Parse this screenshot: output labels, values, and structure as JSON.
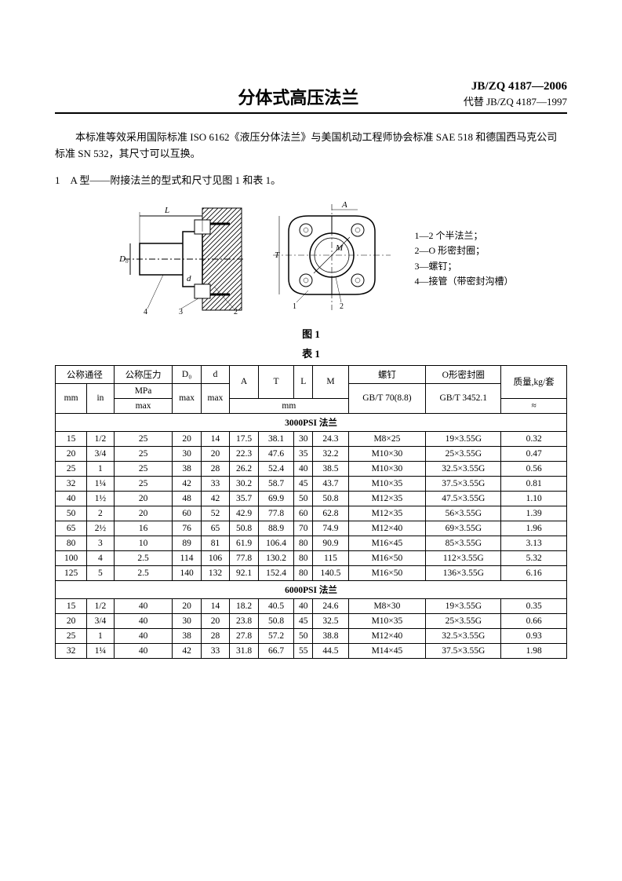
{
  "header": {
    "title": "分体式高压法兰",
    "standard_code": "JB/ZQ 4187—2006",
    "replaces": "代替 JB/ZQ 4187—1997"
  },
  "intro": "本标准等效采用国际标准 ISO 6162《液压分体法兰》与美国机动工程师协会标准 SAE 518 和德国西马克公司标准 SN 532，其尺寸可以互换。",
  "section1": "1　A 型——附接法兰的型式和尺寸见图 1 和表 1。",
  "figure": {
    "caption": "图 1",
    "labels": {
      "L": "L",
      "D0": "D₀",
      "d": "d",
      "A": "A",
      "T": "T",
      "M": "M",
      "n1": "1",
      "n2": "2",
      "n3": "3",
      "n4": "4"
    },
    "legend": [
      "1—2 个半法兰；",
      "2—O 形密封圈；",
      "3—螺钉；",
      "4—接管（带密封沟槽）"
    ]
  },
  "table": {
    "caption": "表 1",
    "headers": {
      "nominal_dia": "公称通径",
      "pressure": "公称压力",
      "pressure_unit": "MPa",
      "pressure_max": "max",
      "D0": "D₀",
      "D0_sub": "max",
      "d": "d",
      "d_sub": "max",
      "A": "A",
      "T": "T",
      "L": "L",
      "M": "M",
      "bolt": "螺钉",
      "bolt_std": "GB/T 70(8.8)",
      "oring": "O形密封圈",
      "oring_std": "GB/T 3452.1",
      "mass": "质量,kg/套",
      "approx": "≈",
      "mm": "mm",
      "in": "in",
      "unit_mm": "mm"
    },
    "section_3000": "3000PSI 法兰",
    "section_6000": "6000PSI 法兰",
    "rows_3000": [
      {
        "mm": "15",
        "in": "1/2",
        "p": "25",
        "D0": "20",
        "d": "14",
        "A": "17.5",
        "T": "38.1",
        "L": "30",
        "M": "24.3",
        "bolt": "M8×25",
        "oring": "19×3.55G",
        "mass": "0.32"
      },
      {
        "mm": "20",
        "in": "3/4",
        "p": "25",
        "D0": "30",
        "d": "20",
        "A": "22.3",
        "T": "47.6",
        "L": "35",
        "M": "32.2",
        "bolt": "M10×30",
        "oring": "25×3.55G",
        "mass": "0.47"
      },
      {
        "mm": "25",
        "in": "1",
        "p": "25",
        "D0": "38",
        "d": "28",
        "A": "26.2",
        "T": "52.4",
        "L": "40",
        "M": "38.5",
        "bolt": "M10×30",
        "oring": "32.5×3.55G",
        "mass": "0.56"
      },
      {
        "mm": "32",
        "in": "1¼",
        "p": "25",
        "D0": "42",
        "d": "33",
        "A": "30.2",
        "T": "58.7",
        "L": "45",
        "M": "43.7",
        "bolt": "M10×35",
        "oring": "37.5×3.55G",
        "mass": "0.81"
      },
      {
        "mm": "40",
        "in": "1½",
        "p": "20",
        "D0": "48",
        "d": "42",
        "A": "35.7",
        "T": "69.9",
        "L": "50",
        "M": "50.8",
        "bolt": "M12×35",
        "oring": "47.5×3.55G",
        "mass": "1.10"
      },
      {
        "mm": "50",
        "in": "2",
        "p": "20",
        "D0": "60",
        "d": "52",
        "A": "42.9",
        "T": "77.8",
        "L": "60",
        "M": "62.8",
        "bolt": "M12×35",
        "oring": "56×3.55G",
        "mass": "1.39"
      },
      {
        "mm": "65",
        "in": "2½",
        "p": "16",
        "D0": "76",
        "d": "65",
        "A": "50.8",
        "T": "88.9",
        "L": "70",
        "M": "74.9",
        "bolt": "M12×40",
        "oring": "69×3.55G",
        "mass": "1.96"
      },
      {
        "mm": "80",
        "in": "3",
        "p": "10",
        "D0": "89",
        "d": "81",
        "A": "61.9",
        "T": "106.4",
        "L": "80",
        "M": "90.9",
        "bolt": "M16×45",
        "oring": "85×3.55G",
        "mass": "3.13"
      },
      {
        "mm": "100",
        "in": "4",
        "p": "2.5",
        "D0": "114",
        "d": "106",
        "A": "77.8",
        "T": "130.2",
        "L": "80",
        "M": "115",
        "bolt": "M16×50",
        "oring": "112×3.55G",
        "mass": "5.32"
      },
      {
        "mm": "125",
        "in": "5",
        "p": "2.5",
        "D0": "140",
        "d": "132",
        "A": "92.1",
        "T": "152.4",
        "L": "80",
        "M": "140.5",
        "bolt": "M16×50",
        "oring": "136×3.55G",
        "mass": "6.16"
      }
    ],
    "rows_6000": [
      {
        "mm": "15",
        "in": "1/2",
        "p": "40",
        "D0": "20",
        "d": "14",
        "A": "18.2",
        "T": "40.5",
        "L": "40",
        "M": "24.6",
        "bolt": "M8×30",
        "oring": "19×3.55G",
        "mass": "0.35"
      },
      {
        "mm": "20",
        "in": "3/4",
        "p": "40",
        "D0": "30",
        "d": "20",
        "A": "23.8",
        "T": "50.8",
        "L": "45",
        "M": "32.5",
        "bolt": "M10×35",
        "oring": "25×3.55G",
        "mass": "0.66"
      },
      {
        "mm": "25",
        "in": "1",
        "p": "40",
        "D0": "38",
        "d": "28",
        "A": "27.8",
        "T": "57.2",
        "L": "50",
        "M": "38.8",
        "bolt": "M12×40",
        "oring": "32.5×3.55G",
        "mass": "0.93"
      },
      {
        "mm": "32",
        "in": "1¼",
        "p": "40",
        "D0": "42",
        "d": "33",
        "A": "31.8",
        "T": "66.7",
        "L": "55",
        "M": "44.5",
        "bolt": "M14×45",
        "oring": "37.5×3.55G",
        "mass": "1.98"
      }
    ]
  }
}
